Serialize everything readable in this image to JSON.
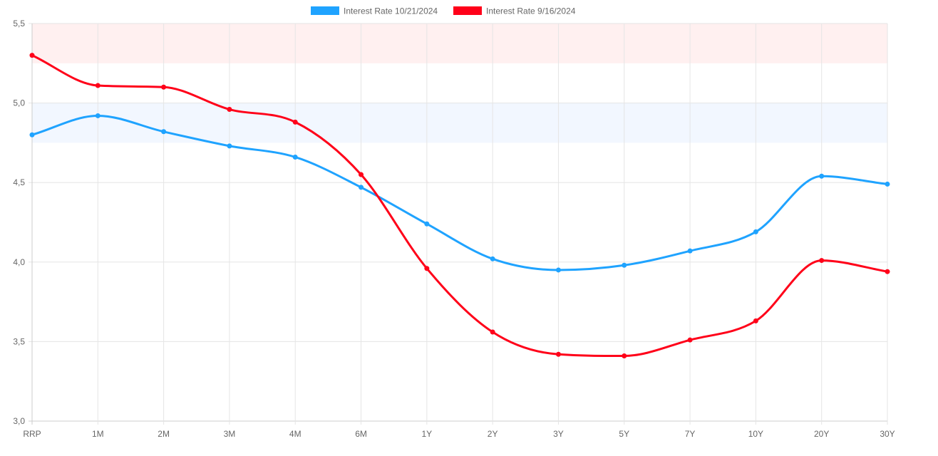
{
  "chart_data": {
    "type": "line",
    "categories": [
      "RRP",
      "1M",
      "2M",
      "3M",
      "4M",
      "6M",
      "1Y",
      "2Y",
      "3Y",
      "5Y",
      "7Y",
      "10Y",
      "20Y",
      "30Y"
    ],
    "series": [
      {
        "name": "Interest Rate 10/21/2024",
        "color": "#1fa3ff",
        "values": [
          4.8,
          4.92,
          4.82,
          4.73,
          4.66,
          4.47,
          4.24,
          4.02,
          3.95,
          3.98,
          4.07,
          4.19,
          4.54,
          4.49
        ]
      },
      {
        "name": "Interest Rate 9/16/2024",
        "color": "#ff0019",
        "values": [
          5.3,
          5.11,
          5.1,
          4.96,
          4.88,
          4.55,
          3.96,
          3.56,
          3.42,
          3.41,
          3.51,
          3.63,
          4.01,
          3.94
        ]
      }
    ],
    "ylim": [
      3.0,
      5.5
    ],
    "yticks": [
      "3,0",
      "3,5",
      "4,0",
      "4,5",
      "5,0",
      "5,5"
    ],
    "ytick_values": [
      3.0,
      3.5,
      4.0,
      4.5,
      5.0,
      5.5
    ],
    "bands": [
      {
        "from": 5.25,
        "to": 5.5,
        "color": "#fff0f0"
      },
      {
        "from": 4.75,
        "to": 5.0,
        "color": "#f2f7ff"
      }
    ],
    "title": "",
    "xlabel": "",
    "ylabel": "",
    "grid": true,
    "legend": "top-center"
  }
}
